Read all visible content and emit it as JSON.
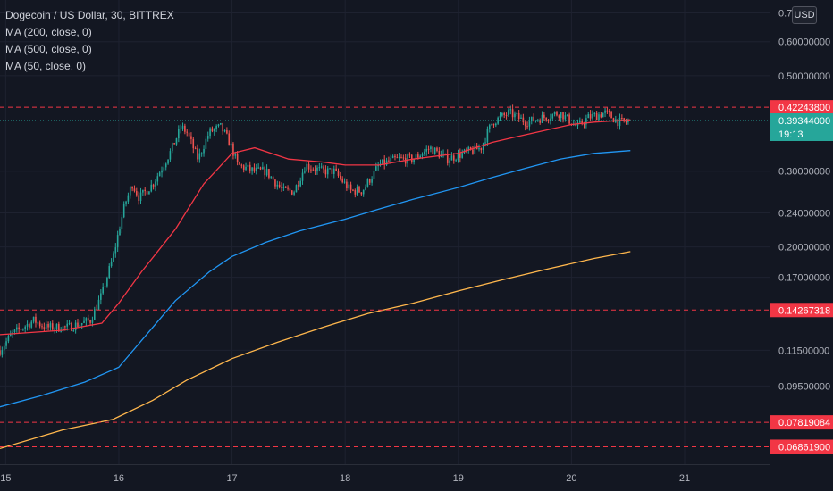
{
  "legend": {
    "title": "Dogecoin / US Dollar, 30, BITTREX",
    "ma200": "MA (200, close, 0)",
    "ma500": "MA (500, close, 0)",
    "ma50": "MA (50, close, 0)"
  },
  "currency_button": "USD",
  "price_axis": {
    "ticks": [
      {
        "value": 0.7,
        "label": "0.7"
      },
      {
        "value": 0.6,
        "label": "0.60000000"
      },
      {
        "value": 0.5,
        "label": "0.50000000"
      },
      {
        "value": 0.3,
        "label": "0.30000000"
      },
      {
        "value": 0.24,
        "label": "0.24000000"
      },
      {
        "value": 0.2,
        "label": "0.20000000"
      },
      {
        "value": 0.17,
        "label": "0.17000000"
      },
      {
        "value": 0.115,
        "label": "0.11500000"
      },
      {
        "value": 0.095,
        "label": "0.09500000"
      }
    ]
  },
  "time_axis": {
    "ticks": [
      {
        "day": 15,
        "label": "15"
      },
      {
        "day": 16,
        "label": "16"
      },
      {
        "day": 17,
        "label": "17"
      },
      {
        "day": 18,
        "label": "18"
      },
      {
        "day": 19,
        "label": "19"
      },
      {
        "day": 20,
        "label": "20"
      },
      {
        "day": 21,
        "label": "21"
      }
    ]
  },
  "levels": [
    {
      "price": 0.422438,
      "label": "0.42243800",
      "color": "#f23645"
    },
    {
      "price": 0.14267318,
      "label": "0.14267318",
      "color": "#f23645"
    },
    {
      "price": 0.07819084,
      "label": "0.07819084",
      "color": "#f23645"
    },
    {
      "price": 0.068619,
      "label": "0.06861900",
      "color": "#f23645"
    }
  ],
  "current_price": {
    "price": 0.39344,
    "label": "0.39344000",
    "countdown": "19:13",
    "color": "#26a69a"
  },
  "colors": {
    "up": "#26a69a",
    "down": "#ef5350",
    "ma50": "#f23645",
    "ma200": "#2196f3",
    "ma500": "#ffb74d",
    "grid": "#1e2230",
    "background": "#131722"
  },
  "chart_data": {
    "type": "candlestick",
    "scale": "log",
    "x_unit": "day",
    "ylim": [
      0.0625,
      0.75
    ],
    "xlim": [
      14.95,
      21.75
    ],
    "candle_anchors": [
      [
        14.95,
        0.115
      ],
      [
        15.05,
        0.125
      ],
      [
        15.25,
        0.135
      ],
      [
        15.35,
        0.13
      ],
      [
        15.55,
        0.13
      ],
      [
        15.75,
        0.135
      ],
      [
        15.85,
        0.155
      ],
      [
        15.95,
        0.19
      ],
      [
        16.05,
        0.25
      ],
      [
        16.12,
        0.28
      ],
      [
        16.18,
        0.26
      ],
      [
        16.3,
        0.28
      ],
      [
        16.45,
        0.33
      ],
      [
        16.55,
        0.38
      ],
      [
        16.6,
        0.37
      ],
      [
        16.7,
        0.32
      ],
      [
        16.8,
        0.37
      ],
      [
        16.9,
        0.38
      ],
      [
        16.98,
        0.35
      ],
      [
        17.05,
        0.31
      ],
      [
        17.2,
        0.3
      ],
      [
        17.3,
        0.3
      ],
      [
        17.45,
        0.27
      ],
      [
        17.55,
        0.27
      ],
      [
        17.65,
        0.31
      ],
      [
        17.8,
        0.3
      ],
      [
        17.9,
        0.3
      ],
      [
        18.05,
        0.27
      ],
      [
        18.15,
        0.27
      ],
      [
        18.3,
        0.31
      ],
      [
        18.45,
        0.32
      ],
      [
        18.6,
        0.32
      ],
      [
        18.75,
        0.34
      ],
      [
        18.9,
        0.32
      ],
      [
        19.05,
        0.33
      ],
      [
        19.2,
        0.34
      ],
      [
        19.3,
        0.39
      ],
      [
        19.45,
        0.41
      ],
      [
        19.6,
        0.39
      ],
      [
        19.75,
        0.4
      ],
      [
        19.9,
        0.41
      ],
      [
        20.05,
        0.38
      ],
      [
        20.15,
        0.4
      ],
      [
        20.3,
        0.41
      ],
      [
        20.42,
        0.39
      ],
      [
        20.52,
        0.39
      ]
    ],
    "ma50": [
      [
        14.95,
        0.125
      ],
      [
        15.5,
        0.128
      ],
      [
        15.85,
        0.133
      ],
      [
        16.0,
        0.148
      ],
      [
        16.2,
        0.175
      ],
      [
        16.5,
        0.22
      ],
      [
        16.75,
        0.28
      ],
      [
        17.0,
        0.33
      ],
      [
        17.2,
        0.34
      ],
      [
        17.5,
        0.32
      ],
      [
        17.8,
        0.315
      ],
      [
        18.0,
        0.31
      ],
      [
        18.3,
        0.31
      ],
      [
        18.6,
        0.32
      ],
      [
        19.0,
        0.33
      ],
      [
        19.3,
        0.35
      ],
      [
        19.5,
        0.36
      ],
      [
        19.8,
        0.375
      ],
      [
        20.0,
        0.385
      ],
      [
        20.2,
        0.39
      ],
      [
        20.52,
        0.395
      ]
    ],
    "ma200": [
      [
        14.95,
        0.085
      ],
      [
        15.3,
        0.09
      ],
      [
        15.7,
        0.097
      ],
      [
        16.0,
        0.105
      ],
      [
        16.3,
        0.13
      ],
      [
        16.5,
        0.15
      ],
      [
        16.8,
        0.175
      ],
      [
        17.0,
        0.19
      ],
      [
        17.3,
        0.205
      ],
      [
        17.6,
        0.218
      ],
      [
        18.0,
        0.232
      ],
      [
        18.3,
        0.245
      ],
      [
        18.6,
        0.258
      ],
      [
        19.0,
        0.275
      ],
      [
        19.3,
        0.29
      ],
      [
        19.6,
        0.305
      ],
      [
        19.9,
        0.32
      ],
      [
        20.2,
        0.33
      ],
      [
        20.52,
        0.335
      ]
    ],
    "ma500": [
      [
        14.95,
        0.068
      ],
      [
        15.5,
        0.075
      ],
      [
        15.95,
        0.0795
      ],
      [
        16.3,
        0.088
      ],
      [
        16.6,
        0.098
      ],
      [
        17.0,
        0.11
      ],
      [
        17.4,
        0.12
      ],
      [
        17.8,
        0.13
      ],
      [
        18.2,
        0.14
      ],
      [
        18.6,
        0.148
      ],
      [
        19.0,
        0.158
      ],
      [
        19.4,
        0.168
      ],
      [
        19.8,
        0.178
      ],
      [
        20.2,
        0.188
      ],
      [
        20.52,
        0.195
      ]
    ]
  }
}
